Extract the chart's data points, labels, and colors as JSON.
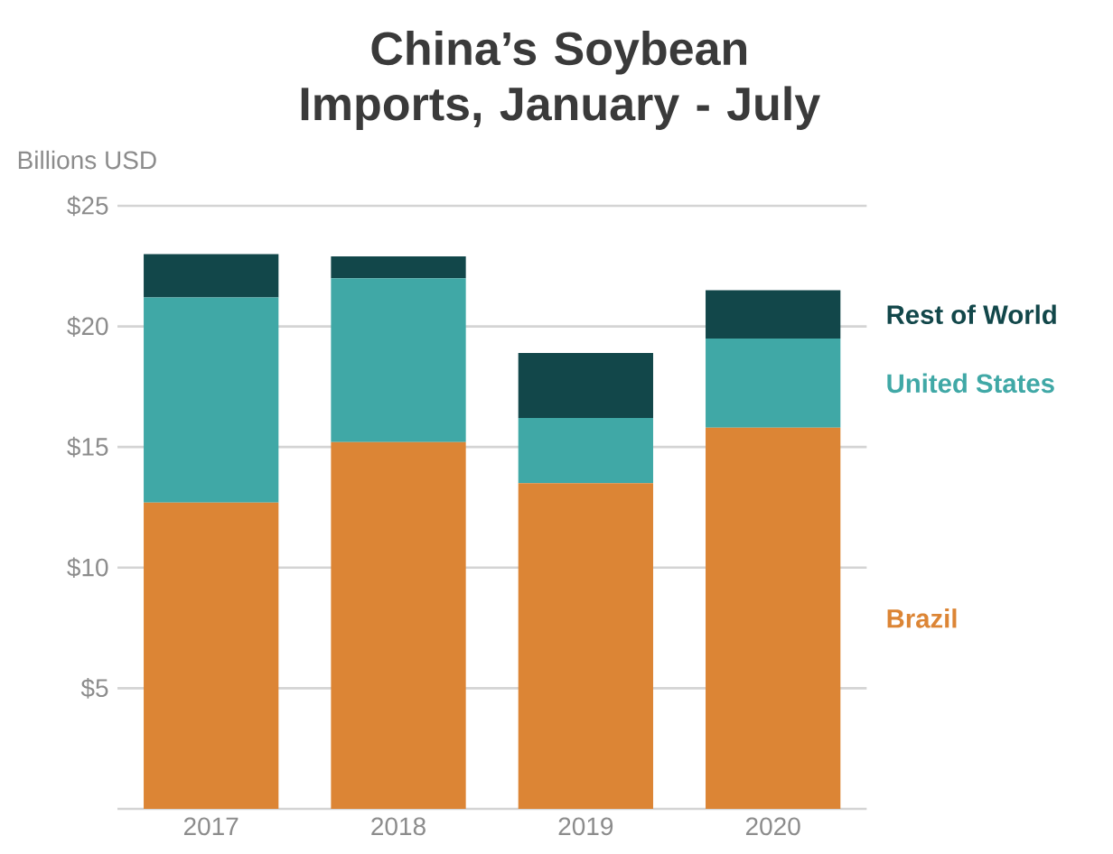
{
  "chart_data": {
    "type": "bar",
    "stacked": true,
    "title": "China’s Soybean Imports, January - July",
    "ylabel": "Billions USD",
    "categories": [
      "2017",
      "2018",
      "2019",
      "2020"
    ],
    "series": [
      {
        "name": "Brazil",
        "color": "#dc8535",
        "values": [
          12.7,
          15.2,
          13.5,
          15.8
        ]
      },
      {
        "name": "United States",
        "color": "#40a8a6",
        "values": [
          8.5,
          6.8,
          2.7,
          3.7
        ]
      },
      {
        "name": "Rest of World",
        "color": "#12474a",
        "values": [
          1.8,
          0.9,
          2.7,
          2.0
        ]
      }
    ],
    "ylim": [
      0,
      25
    ],
    "yticks": [
      {
        "value": 0,
        "label": null
      },
      {
        "value": 5,
        "label": "$5"
      },
      {
        "value": 10,
        "label": "$10"
      },
      {
        "value": 15,
        "label": "$15"
      },
      {
        "value": 20,
        "label": "$20"
      },
      {
        "value": 25,
        "label": "$25"
      }
    ],
    "grid": "y",
    "legend": "right"
  }
}
